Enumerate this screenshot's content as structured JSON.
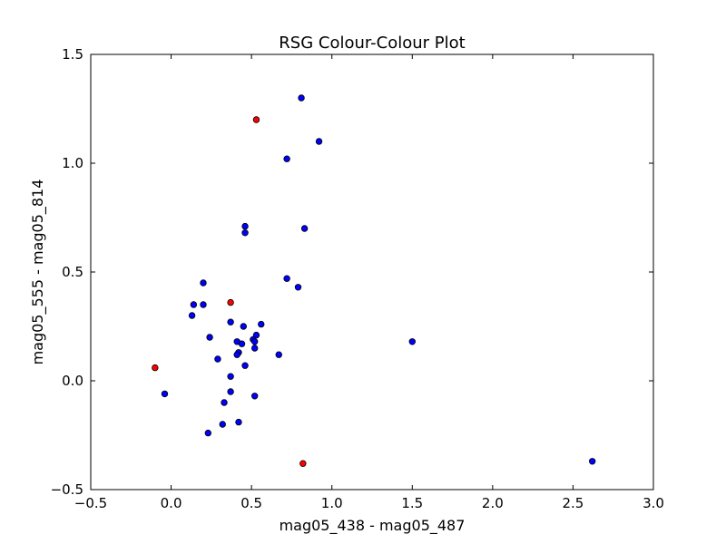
{
  "chart_data": {
    "type": "scatter",
    "title": "RSG Colour-Colour Plot",
    "xlabel": "mag05_438 - mag05_487",
    "ylabel": "mag05_555 - mag05_814",
    "xlim": [
      -0.5,
      3.0
    ],
    "ylim": [
      -0.5,
      1.5
    ],
    "xticks": [
      -0.5,
      0.0,
      0.5,
      1.0,
      1.5,
      2.0,
      2.5,
      3.0
    ],
    "xtick_labels": [
      "−0.5",
      "0.0",
      "0.5",
      "1.0",
      "1.5",
      "2.0",
      "2.5",
      "3.0"
    ],
    "yticks": [
      -0.5,
      0.0,
      0.5,
      1.0,
      1.5
    ],
    "ytick_labels": [
      "−0.5",
      "0.0",
      "0.5",
      "1.0",
      "1.5"
    ],
    "grid": false,
    "legend": false,
    "series": [
      {
        "color": "#0000ff",
        "points": [
          [
            0.81,
            1.3
          ],
          [
            0.92,
            1.1
          ],
          [
            0.72,
            1.02
          ],
          [
            0.46,
            0.71
          ],
          [
            0.46,
            0.68
          ],
          [
            0.83,
            0.7
          ],
          [
            0.2,
            0.45
          ],
          [
            0.72,
            0.47
          ],
          [
            0.79,
            0.43
          ],
          [
            0.14,
            0.35
          ],
          [
            0.2,
            0.35
          ],
          [
            0.13,
            0.3
          ],
          [
            0.37,
            0.27
          ],
          [
            0.45,
            0.25
          ],
          [
            0.56,
            0.26
          ],
          [
            0.24,
            0.2
          ],
          [
            0.53,
            0.21
          ],
          [
            0.51,
            0.19
          ],
          [
            0.52,
            0.18
          ],
          [
            0.41,
            0.18
          ],
          [
            0.44,
            0.17
          ],
          [
            0.52,
            0.15
          ],
          [
            0.42,
            0.13
          ],
          [
            0.41,
            0.12
          ],
          [
            0.67,
            0.12
          ],
          [
            0.29,
            0.1
          ],
          [
            0.46,
            0.07
          ],
          [
            0.37,
            0.02
          ],
          [
            0.37,
            -0.05
          ],
          [
            -0.04,
            -0.06
          ],
          [
            0.52,
            -0.07
          ],
          [
            0.33,
            -0.1
          ],
          [
            0.32,
            -0.2
          ],
          [
            0.42,
            -0.19
          ],
          [
            0.23,
            -0.24
          ],
          [
            1.5,
            0.18
          ],
          [
            2.62,
            -0.37
          ]
        ]
      },
      {
        "color": "#ff0000",
        "points": [
          [
            0.53,
            1.2
          ],
          [
            0.37,
            0.36
          ],
          [
            -0.1,
            0.06
          ],
          [
            0.82,
            -0.38
          ]
        ]
      }
    ]
  }
}
